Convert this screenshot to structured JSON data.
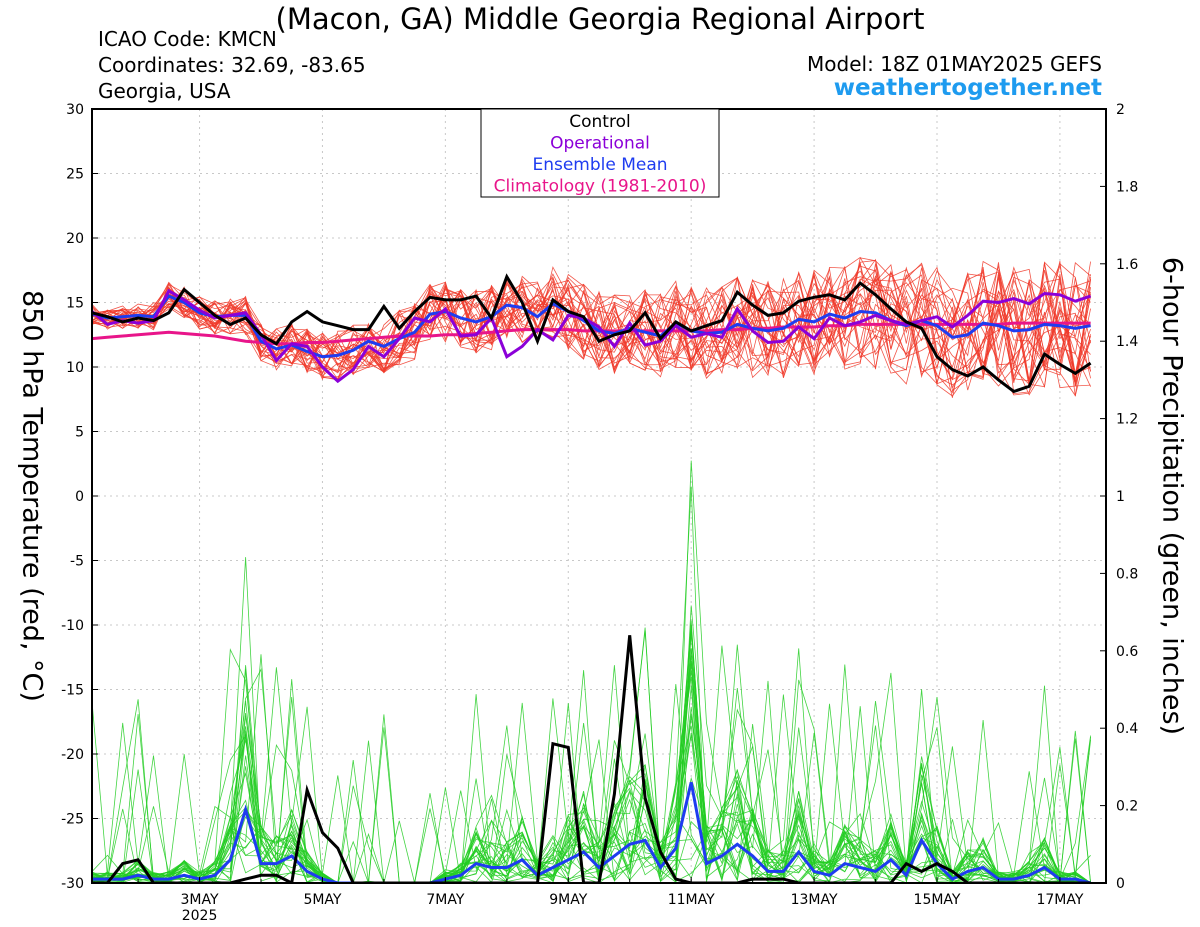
{
  "header": {
    "title": "(Macon, GA) Middle Georgia Regional Airport",
    "icao": "ICAO Code: KMCN",
    "coordinates": "Coordinates: 32.69, -83.65",
    "region": "Georgia, USA",
    "model": "Model: 18Z 01MAY2025 GEFS",
    "brand": "weathertogether.net"
  },
  "legend": [
    {
      "label": "Control",
      "color": "#000000"
    },
    {
      "label": "Operational",
      "color": "#8b00d8"
    },
    {
      "label": "Ensemble Mean",
      "color": "#1e3cf0"
    },
    {
      "label": "Climatology (1981-2010)",
      "color": "#e8158a"
    }
  ],
  "chart_data": {
    "type": "line",
    "ylabel": "850 hPa Temperature (red, °C)",
    "y2label": "6-hour Precipitation (green, inches)",
    "ylim": [
      -30,
      30
    ],
    "y2lim": [
      0,
      2
    ],
    "yticks": [
      30,
      25,
      20,
      15,
      10,
      5,
      0,
      -5,
      -10,
      -15,
      -20,
      -25,
      -30
    ],
    "y2ticks": [
      "2",
      "1.8",
      "1.6",
      "1.4",
      "1.2",
      "1",
      "0.8",
      "0.6",
      "0.4",
      "0.2",
      "0"
    ],
    "xlim": [
      0,
      16.5
    ],
    "xticks": [
      {
        "label": "3MAY",
        "sub": "2025",
        "x": 1.75
      },
      {
        "label": "5MAY",
        "x": 3.75
      },
      {
        "label": "7MAY",
        "x": 5.75
      },
      {
        "label": "9MAY",
        "x": 7.75
      },
      {
        "label": "11MAY",
        "x": 9.75
      },
      {
        "label": "13MAY",
        "x": 11.75
      },
      {
        "label": "15MAY",
        "x": 13.75
      },
      {
        "label": "17MAY",
        "x": 15.75
      }
    ],
    "x_note": "x in days after 18Z 01MAY2025, 6-hour steps",
    "temperature": {
      "control": [
        14.2,
        13.9,
        13.5,
        13.8,
        13.6,
        14.2,
        16.0,
        15.0,
        14.0,
        13.3,
        13.8,
        12.5,
        11.8,
        13.5,
        14.3,
        13.5,
        13.2,
        12.9,
        12.9,
        14.7,
        13.0,
        14.3,
        15.4,
        15.2,
        15.2,
        15.5,
        13.8,
        17.0,
        15.0,
        12.0,
        15.2,
        14.3,
        13.9,
        12.0,
        12.5,
        12.8,
        14.2,
        12.2,
        13.5,
        12.8,
        13.2,
        13.6,
        15.8,
        14.8,
        14.0,
        14.2,
        15.1,
        15.4,
        15.6,
        15.2,
        16.5,
        15.6,
        14.5,
        13.5,
        13.0,
        10.8,
        9.8,
        9.3,
        10.0,
        9.0,
        8.1,
        8.5,
        11.0,
        10.2,
        9.5,
        10.3
      ],
      "operational": [
        14.3,
        13.3,
        13.6,
        13.4,
        13.6,
        15.9,
        15.2,
        14.4,
        13.8,
        14.0,
        14.2,
        12.5,
        10.5,
        11.8,
        11.6,
        10.0,
        8.9,
        9.8,
        11.6,
        10.8,
        12.2,
        13.8,
        13.5,
        14.5,
        12.4,
        12.5,
        13.8,
        10.8,
        11.6,
        12.9,
        12.1,
        14.0,
        13.8,
        13.1,
        11.6,
        13.4,
        11.7,
        12.0,
        13.2,
        12.3,
        12.6,
        12.3,
        14.5,
        12.8,
        11.9,
        12.0,
        13.1,
        12.2,
        13.8,
        13.2,
        13.5,
        14.0,
        13.6,
        13.3,
        13.6,
        13.9,
        13.1,
        14.0,
        15.1,
        15.0,
        15.3,
        14.9,
        15.7,
        15.6,
        15.1,
        15.5
      ],
      "mean": [
        14.1,
        13.8,
        13.9,
        14.0,
        13.9,
        15.5,
        15.0,
        14.2,
        13.9,
        14.0,
        14.0,
        12.0,
        11.4,
        11.7,
        11.2,
        10.8,
        10.9,
        11.3,
        12.0,
        11.6,
        12.2,
        12.7,
        14.1,
        14.3,
        13.8,
        13.5,
        13.9,
        14.8,
        14.6,
        13.9,
        14.9,
        14.3,
        13.6,
        12.8,
        12.6,
        13.0,
        12.7,
        12.4,
        13.4,
        12.8,
        12.6,
        12.7,
        13.3,
        13.0,
        12.8,
        13.0,
        13.7,
        13.5,
        14.1,
        13.8,
        14.3,
        14.2,
        13.6,
        13.2,
        13.6,
        13.2,
        12.3,
        12.5,
        13.4,
        13.2,
        12.8,
        12.9,
        13.3,
        13.2,
        13.0,
        13.2
      ],
      "climatology": [
        12.2,
        12.3,
        12.4,
        12.5,
        12.6,
        12.7,
        12.6,
        12.5,
        12.4,
        12.2,
        12.0,
        11.9,
        11.8,
        11.8,
        11.9,
        11.9,
        12.0,
        12.1,
        12.2,
        12.3,
        12.4,
        12.4,
        12.4,
        12.5,
        12.5,
        12.6,
        12.7,
        12.8,
        12.9,
        12.9,
        12.9,
        12.9,
        12.8,
        12.8,
        12.8,
        12.8,
        12.8,
        12.8,
        12.8,
        12.8,
        12.8,
        12.9,
        12.9,
        13.0,
        13.0,
        13.1,
        13.1,
        13.1,
        13.2,
        13.2,
        13.3,
        13.3,
        13.3,
        13.3,
        13.3,
        13.3,
        13.3,
        13.3,
        13.3,
        13.3,
        13.4,
        13.4,
        13.4,
        13.4,
        13.4,
        13.4
      ]
    },
    "precipitation": {
      "control": [
        0,
        0,
        0.05,
        0.06,
        0,
        0,
        0,
        0,
        0,
        0,
        0.01,
        0.02,
        0.02,
        0,
        0.24,
        0.13,
        0.09,
        0,
        0,
        0,
        0,
        0,
        0,
        0,
        0,
        0,
        0,
        0,
        0,
        0,
        0.36,
        0.35,
        0,
        0,
        0.23,
        0.64,
        0.22,
        0.08,
        0.01,
        0,
        0,
        0,
        0,
        0.01,
        0.01,
        0.01,
        0,
        0,
        0,
        0,
        0,
        0,
        0,
        0.05,
        0.03,
        0.05,
        0.03,
        0,
        0,
        0,
        0,
        0,
        0,
        0,
        0,
        0
      ],
      "mean": [
        0.01,
        0.01,
        0.01,
        0.02,
        0.01,
        0.01,
        0.02,
        0.01,
        0.02,
        0.06,
        0.19,
        0.05,
        0.05,
        0.07,
        0.03,
        0.01,
        0,
        0,
        0,
        0,
        0,
        0,
        0,
        0.01,
        0.02,
        0.05,
        0.04,
        0.04,
        0.06,
        0.02,
        0.04,
        0.06,
        0.08,
        0.04,
        0.07,
        0.1,
        0.11,
        0.04,
        0.09,
        0.26,
        0.05,
        0.07,
        0.1,
        0.07,
        0.03,
        0.03,
        0.08,
        0.03,
        0.02,
        0.05,
        0.04,
        0.03,
        0.06,
        0.02,
        0.11,
        0.05,
        0.01,
        0.03,
        0.04,
        0.01,
        0.01,
        0.02,
        0.04,
        0.01,
        0.01,
        0
      ]
    },
    "ensemble_members": 30,
    "colors": {
      "members_temperature": "#f03a2a",
      "members_precipitation": "#22cc22",
      "control": "#000000",
      "operational": "#8b00d8",
      "mean": "#1e3cf0",
      "climatology": "#e8158a",
      "grid": "#c8c8c8"
    }
  }
}
